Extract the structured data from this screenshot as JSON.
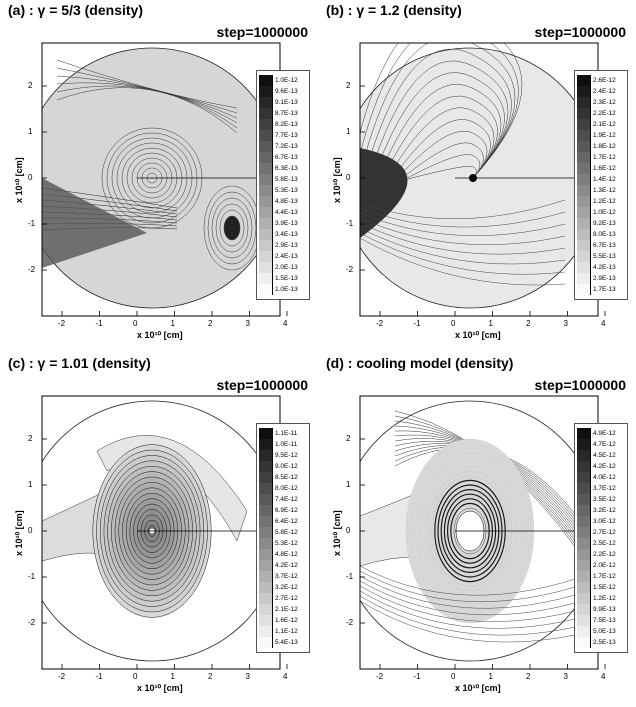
{
  "panels": [
    {
      "title": "(a) : γ = 5/3 (density)",
      "step": "step=1000000",
      "xlabel": "x 10¹⁰ [cm]",
      "ylabel": "x 10¹⁰ [cm]",
      "legend": [
        "1.0E-12",
        "9.6E-13",
        "9.1E-13",
        "8.7E-13",
        "8.2E-13",
        "7.7E-13",
        "7.2E-13",
        "6.7E-13",
        "6.3E-13",
        "5.8E-13",
        "5.3E-13",
        "4.8E-13",
        "4.4E-13",
        "3.9E-13",
        "3.4E-13",
        "2.9E-13",
        "2.4E-13",
        "2.0E-13",
        "1.5E-13",
        "1.0E-13"
      ]
    },
    {
      "title": "(b) : γ = 1.2 (density)",
      "step": "step=1000000",
      "xlabel": "x 10¹⁰ [cm]",
      "ylabel": "x 10¹⁰ [cm]",
      "legend": [
        "2.6E-12",
        "2.4E-12",
        "2.3E-12",
        "2.2E-12",
        "2.1E-12",
        "1.9E-12",
        "1.8E-12",
        "1.7E-12",
        "1.6E-12",
        "1.4E-12",
        "1.3E-12",
        "1.2E-12",
        "1.0E-12",
        "9.2E-13",
        "8.0E-13",
        "6.7E-13",
        "5.5E-13",
        "4.2E-13",
        "2.9E-13",
        "1.7E-13"
      ]
    },
    {
      "title": "(c) : γ = 1.01 (density)",
      "step": "step=1000000",
      "xlabel": "x 10¹⁰ [cm]",
      "ylabel": "x 10¹⁰ [cm]",
      "legend": [
        "1.1E-11",
        "1.0E-11",
        "9.5E-12",
        "9.0E-12",
        "8.5E-12",
        "8.0E-12",
        "7.4E-12",
        "6.9E-12",
        "6.4E-12",
        "5.8E-12",
        "5.3E-12",
        "4.8E-12",
        "4.2E-12",
        "3.7E-12",
        "3.2E-12",
        "2.7E-12",
        "2.1E-12",
        "1.6E-12",
        "1.1E-12",
        "5.4E-13"
      ]
    },
    {
      "title": "(d) : cooling model (density)",
      "step": "step=1000000",
      "xlabel": "x 10¹⁰ [cm]",
      "ylabel": "x 10¹⁰ [cm]",
      "legend": [
        "4.9E-12",
        "4.7E-12",
        "4.5E-12",
        "4.2E-12",
        "4.0E-12",
        "3.7E-12",
        "3.5E-12",
        "3.2E-12",
        "3.0E-12",
        "2.7E-12",
        "2.5E-12",
        "2.2E-12",
        "2.0E-12",
        "1.7E-12",
        "1.5E-12",
        "1.2E-12",
        "9.9E-13",
        "7.5E-13",
        "5.0E-13",
        "2.5E-13"
      ]
    }
  ],
  "xticks": [
    "-2",
    "-1",
    "0",
    "1",
    "2",
    "3",
    "4"
  ],
  "yticks": [
    "2",
    "1",
    "0",
    "-1",
    "-2"
  ]
}
